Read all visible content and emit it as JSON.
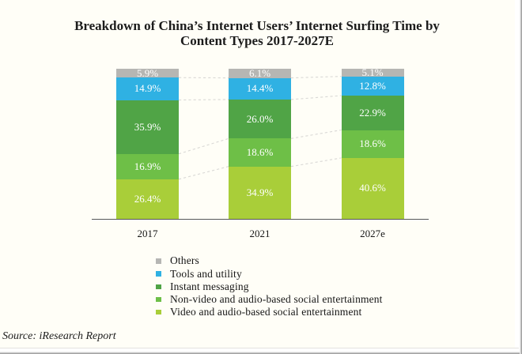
{
  "title": {
    "line1": "Breakdown of China’s Internet Users’ Internet Surfing Time by",
    "line2": "Content Types 2017-2027E"
  },
  "source_note": "Source: iResearch Report",
  "chart_data": {
    "type": "bar",
    "stacked": true,
    "units": "percent of internet surfing time",
    "title": "Breakdown of China’s Internet Users’ Internet Surfing Time by Content Types 2017-2027E",
    "categories": [
      "2017",
      "2021",
      "2027e"
    ],
    "series": [
      {
        "name": "Video and audio-based social entertainment",
        "color": "#a9ce39",
        "values": [
          26.4,
          34.9,
          40.6
        ],
        "labels": [
          "26.4%",
          "34.9%",
          "40.6%"
        ]
      },
      {
        "name": "Non-video and audio-based social entertainment",
        "color": "#6ebf47",
        "values": [
          16.9,
          18.6,
          18.6
        ],
        "labels": [
          "16.9%",
          "18.6%",
          "18.6%"
        ]
      },
      {
        "name": "Instant messaging",
        "color": "#50a446",
        "values": [
          35.9,
          26.0,
          22.9
        ],
        "labels": [
          "35.9%",
          "26.0%",
          "22.9%"
        ]
      },
      {
        "name": "Tools and utility",
        "color": "#2fb1e3",
        "values": [
          14.9,
          14.4,
          12.8
        ],
        "labels": [
          "14.9%",
          "14.4%",
          "12.8%"
        ]
      },
      {
        "name": "Others",
        "color": "#b6b6b3",
        "values": [
          5.9,
          6.1,
          5.1
        ],
        "labels": [
          "5.9%",
          "6.1%",
          "5.1%"
        ]
      }
    ],
    "legend": {
      "position": "bottom-left",
      "order": [
        "Others",
        "Tools and utility",
        "Instant messaging",
        "Non-video and audio-based social entertainment",
        "Video and audio-based social entertainment"
      ]
    },
    "ylim": [
      0,
      100
    ],
    "grid": false,
    "dashed_connectors": true
  },
  "colors": {
    "axis": "#56575a",
    "dashed_connector": "#d9d8d5",
    "value_label": "#ffffff",
    "background": "#fffef7"
  }
}
